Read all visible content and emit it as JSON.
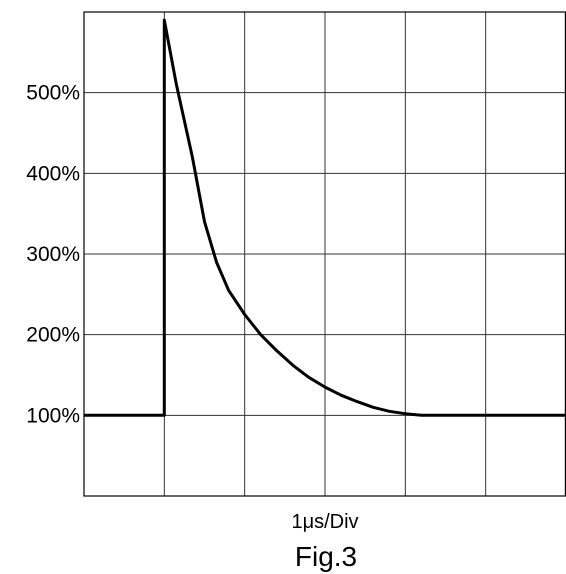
{
  "chart_data": {
    "type": "line",
    "title": "",
    "xlabel": "1μs/Div",
    "ylabel": "",
    "caption": "Fig.3",
    "x_divisions": 6,
    "y_divisions": 6,
    "xlim": [
      0,
      6
    ],
    "ylim": [
      0,
      600
    ],
    "grid": true,
    "legend": "none",
    "y_ticks": [
      {
        "value": 100,
        "label": "100%"
      },
      {
        "value": 200,
        "label": "200%"
      },
      {
        "value": 300,
        "label": "300%"
      },
      {
        "value": 400,
        "label": "400%"
      },
      {
        "value": 500,
        "label": "500%"
      }
    ],
    "series": [
      {
        "color": "#000000",
        "x": [
          0,
          1,
          1,
          1.15,
          1.35,
          1.5,
          1.65,
          1.8,
          2.0,
          2.2,
          2.4,
          2.6,
          2.8,
          3.0,
          3.2,
          3.4,
          3.6,
          3.8,
          4.0,
          4.2,
          4.4,
          5.0,
          6.0
        ],
        "y": [
          100,
          100,
          590,
          510,
          420,
          340,
          290,
          255,
          225,
          200,
          180,
          162,
          147,
          135,
          125,
          117,
          110,
          105,
          102,
          100,
          100,
          100,
          100
        ]
      }
    ]
  }
}
